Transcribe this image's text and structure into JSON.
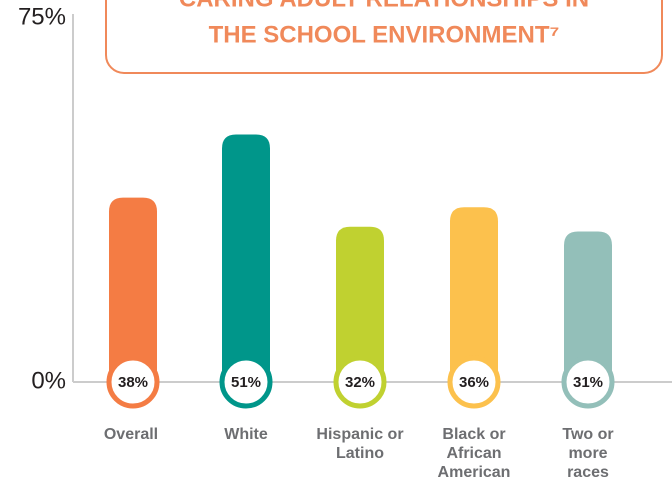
{
  "chart_data": {
    "type": "bar",
    "title_lines": [
      "CARING ADULT RELATIONSHIPS IN",
      "THE SCHOOL ENVIRONMENT⁷"
    ],
    "categories": [
      "Overall",
      "White",
      "Hispanic or Latino",
      "Black or African American",
      "Two or more races"
    ],
    "values": [
      38,
      51,
      32,
      36,
      31
    ],
    "value_labels": [
      "38%",
      "51%",
      "32%",
      "36%",
      "31%"
    ],
    "colors": [
      "#f47c44",
      "#00968a",
      "#c0d130",
      "#fcc14d",
      "#93bfb9"
    ],
    "ylim": [
      0,
      75
    ],
    "yticks": [
      {
        "value": 0,
        "label": "0%"
      },
      {
        "value": 75,
        "label": "75%"
      }
    ]
  }
}
